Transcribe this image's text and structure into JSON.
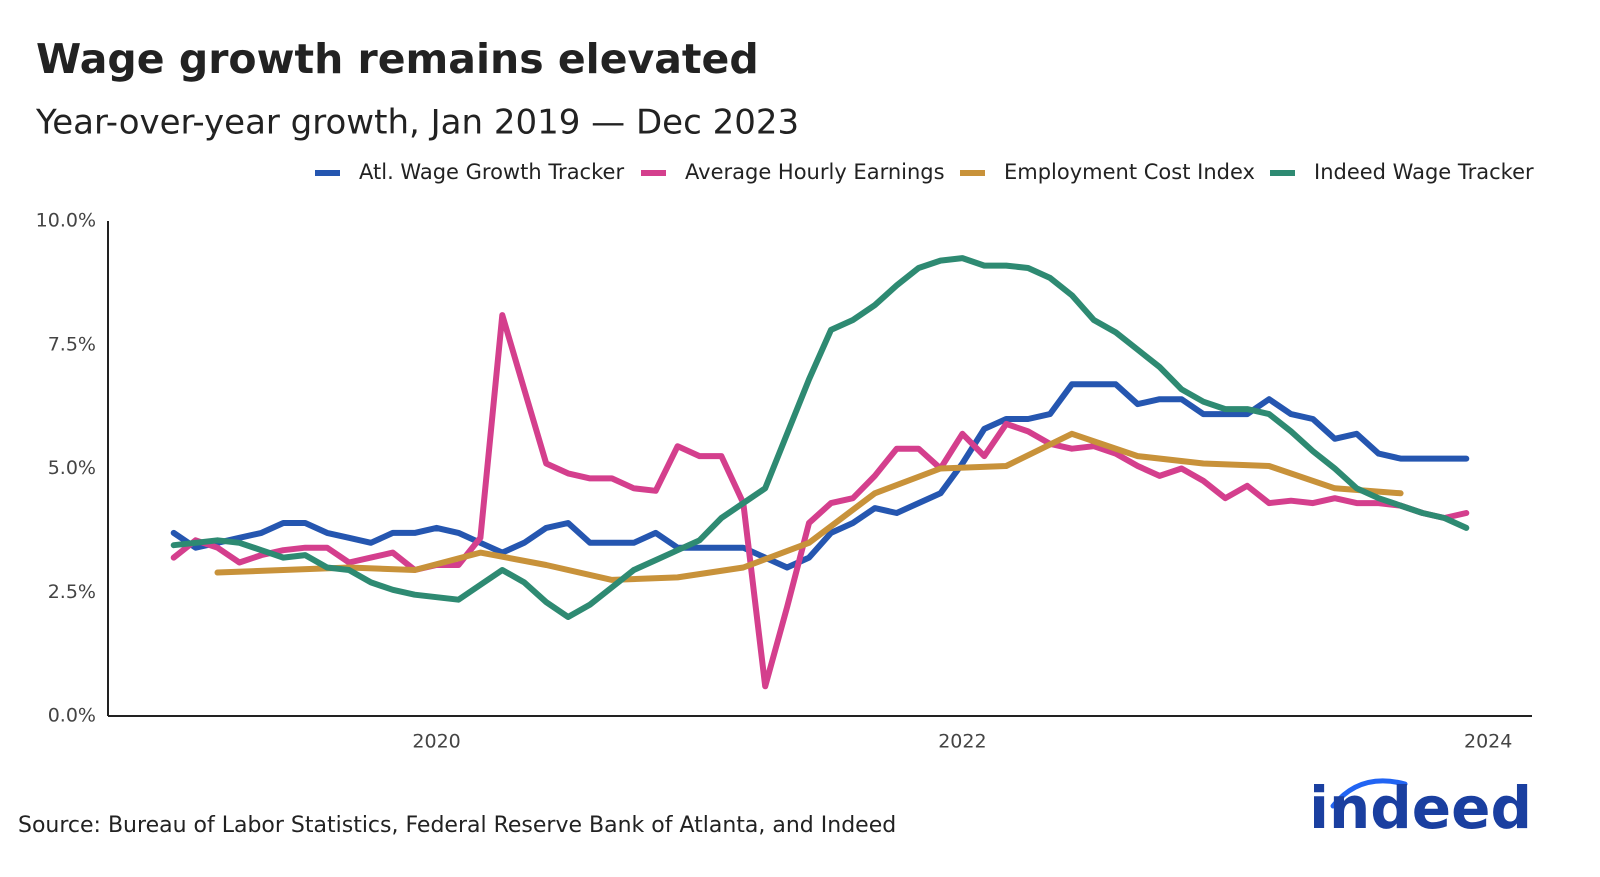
{
  "chart_data": {
    "type": "line",
    "title": "Wage growth remains elevated",
    "subtitle": "Year-over-year growth, Jan 2019 — Dec 2023",
    "source": "Source: Bureau of Labor Statistics, Federal Reserve Bank of Atlanta, and Indeed",
    "logo": "indeed",
    "x": [
      "2019-01",
      "2019-02",
      "2019-03",
      "2019-04",
      "2019-05",
      "2019-06",
      "2019-07",
      "2019-08",
      "2019-09",
      "2019-10",
      "2019-11",
      "2019-12",
      "2020-01",
      "2020-02",
      "2020-03",
      "2020-04",
      "2020-05",
      "2020-06",
      "2020-07",
      "2020-08",
      "2020-09",
      "2020-10",
      "2020-11",
      "2020-12",
      "2021-01",
      "2021-02",
      "2021-03",
      "2021-04",
      "2021-05",
      "2021-06",
      "2021-07",
      "2021-08",
      "2021-09",
      "2021-10",
      "2021-11",
      "2021-12",
      "2022-01",
      "2022-02",
      "2022-03",
      "2022-04",
      "2022-05",
      "2022-06",
      "2022-07",
      "2022-08",
      "2022-09",
      "2022-10",
      "2022-11",
      "2022-12",
      "2023-01",
      "2023-02",
      "2023-03",
      "2023-04",
      "2023-05",
      "2023-06",
      "2023-07",
      "2023-08",
      "2023-09",
      "2023-10",
      "2023-11",
      "2023-12"
    ],
    "xlim": [
      "2018-10",
      "2024-03"
    ],
    "xticks": [
      2020,
      2022,
      2024
    ],
    "ylim": [
      0,
      10
    ],
    "yticks": [
      {
        "value": 0,
        "label": "0.0%"
      },
      {
        "value": 2.5,
        "label": "2.5%"
      },
      {
        "value": 5,
        "label": "5.0%"
      },
      {
        "value": 7.5,
        "label": "7.5%"
      },
      {
        "value": 10,
        "label": "10.0%"
      }
    ],
    "series": [
      {
        "name": "Atl. Wage Growth Tracker",
        "color": "#2556b0",
        "values": [
          3.7,
          3.4,
          3.5,
          3.6,
          3.7,
          3.9,
          3.9,
          3.7,
          3.6,
          3.5,
          3.7,
          3.7,
          3.8,
          3.7,
          3.5,
          3.3,
          3.5,
          3.8,
          3.9,
          3.5,
          3.5,
          3.5,
          3.7,
          3.4,
          3.4,
          3.4,
          3.4,
          3.2,
          3.0,
          3.2,
          3.7,
          3.9,
          4.2,
          4.1,
          4.3,
          4.5,
          5.1,
          5.8,
          6.0,
          6.0,
          6.1,
          6.7,
          6.7,
          6.7,
          6.3,
          6.4,
          6.4,
          6.1,
          6.1,
          6.1,
          6.4,
          6.1,
          6.0,
          5.6,
          5.7,
          5.3,
          5.2,
          5.2,
          5.2,
          5.2
        ]
      },
      {
        "name": "Average Hourly Earnings",
        "color": "#d43f8d",
        "values": [
          3.2,
          3.55,
          3.4,
          3.1,
          3.25,
          3.35,
          3.4,
          3.4,
          3.1,
          3.2,
          3.3,
          2.95,
          3.05,
          3.05,
          3.6,
          8.1,
          6.6,
          5.1,
          4.9,
          4.8,
          4.8,
          4.6,
          4.55,
          5.45,
          5.25,
          5.25,
          4.3,
          0.6,
          2.2,
          3.9,
          4.3,
          4.4,
          4.85,
          5.4,
          5.4,
          5.0,
          5.7,
          5.25,
          5.9,
          5.75,
          5.5,
          5.4,
          5.45,
          5.3,
          5.05,
          4.85,
          5.0,
          4.75,
          4.4,
          4.65,
          4.3,
          4.35,
          4.3,
          4.4,
          4.3,
          4.3,
          4.25,
          4.1,
          4.0,
          4.1
        ]
      },
      {
        "name": "Employment Cost Index",
        "color": "#c8923a",
        "x": [
          "2019-03",
          "2019-06",
          "2019-09",
          "2019-12",
          "2020-03",
          "2020-06",
          "2020-09",
          "2020-12",
          "2021-03",
          "2021-06",
          "2021-09",
          "2021-12",
          "2022-03",
          "2022-06",
          "2022-09",
          "2022-12",
          "2023-03",
          "2023-06",
          "2023-09"
        ],
        "values": [
          2.9,
          2.95,
          3.0,
          2.95,
          3.3,
          3.05,
          2.75,
          2.8,
          3.0,
          3.5,
          4.5,
          5.0,
          5.05,
          5.7,
          5.25,
          5.1,
          5.05,
          4.6,
          4.5
        ]
      },
      {
        "name": "Indeed Wage Tracker",
        "color": "#2e8a72",
        "values": [
          3.45,
          3.5,
          3.55,
          3.5,
          3.35,
          3.2,
          3.25,
          3.0,
          2.95,
          2.7,
          2.55,
          2.45,
          2.4,
          2.35,
          2.65,
          2.95,
          2.7,
          2.3,
          2.0,
          2.25,
          2.6,
          2.95,
          3.15,
          3.35,
          3.55,
          4.0,
          4.3,
          4.6,
          5.7,
          6.8,
          7.8,
          8.0,
          8.3,
          8.7,
          9.05,
          9.2,
          9.25,
          9.1,
          9.1,
          9.05,
          8.85,
          8.5,
          8.0,
          7.75,
          7.4,
          7.05,
          6.6,
          6.35,
          6.2,
          6.2,
          6.1,
          5.75,
          5.35,
          5.0,
          4.6,
          4.4,
          4.25,
          4.1,
          4.0,
          3.8
        ]
      }
    ]
  }
}
